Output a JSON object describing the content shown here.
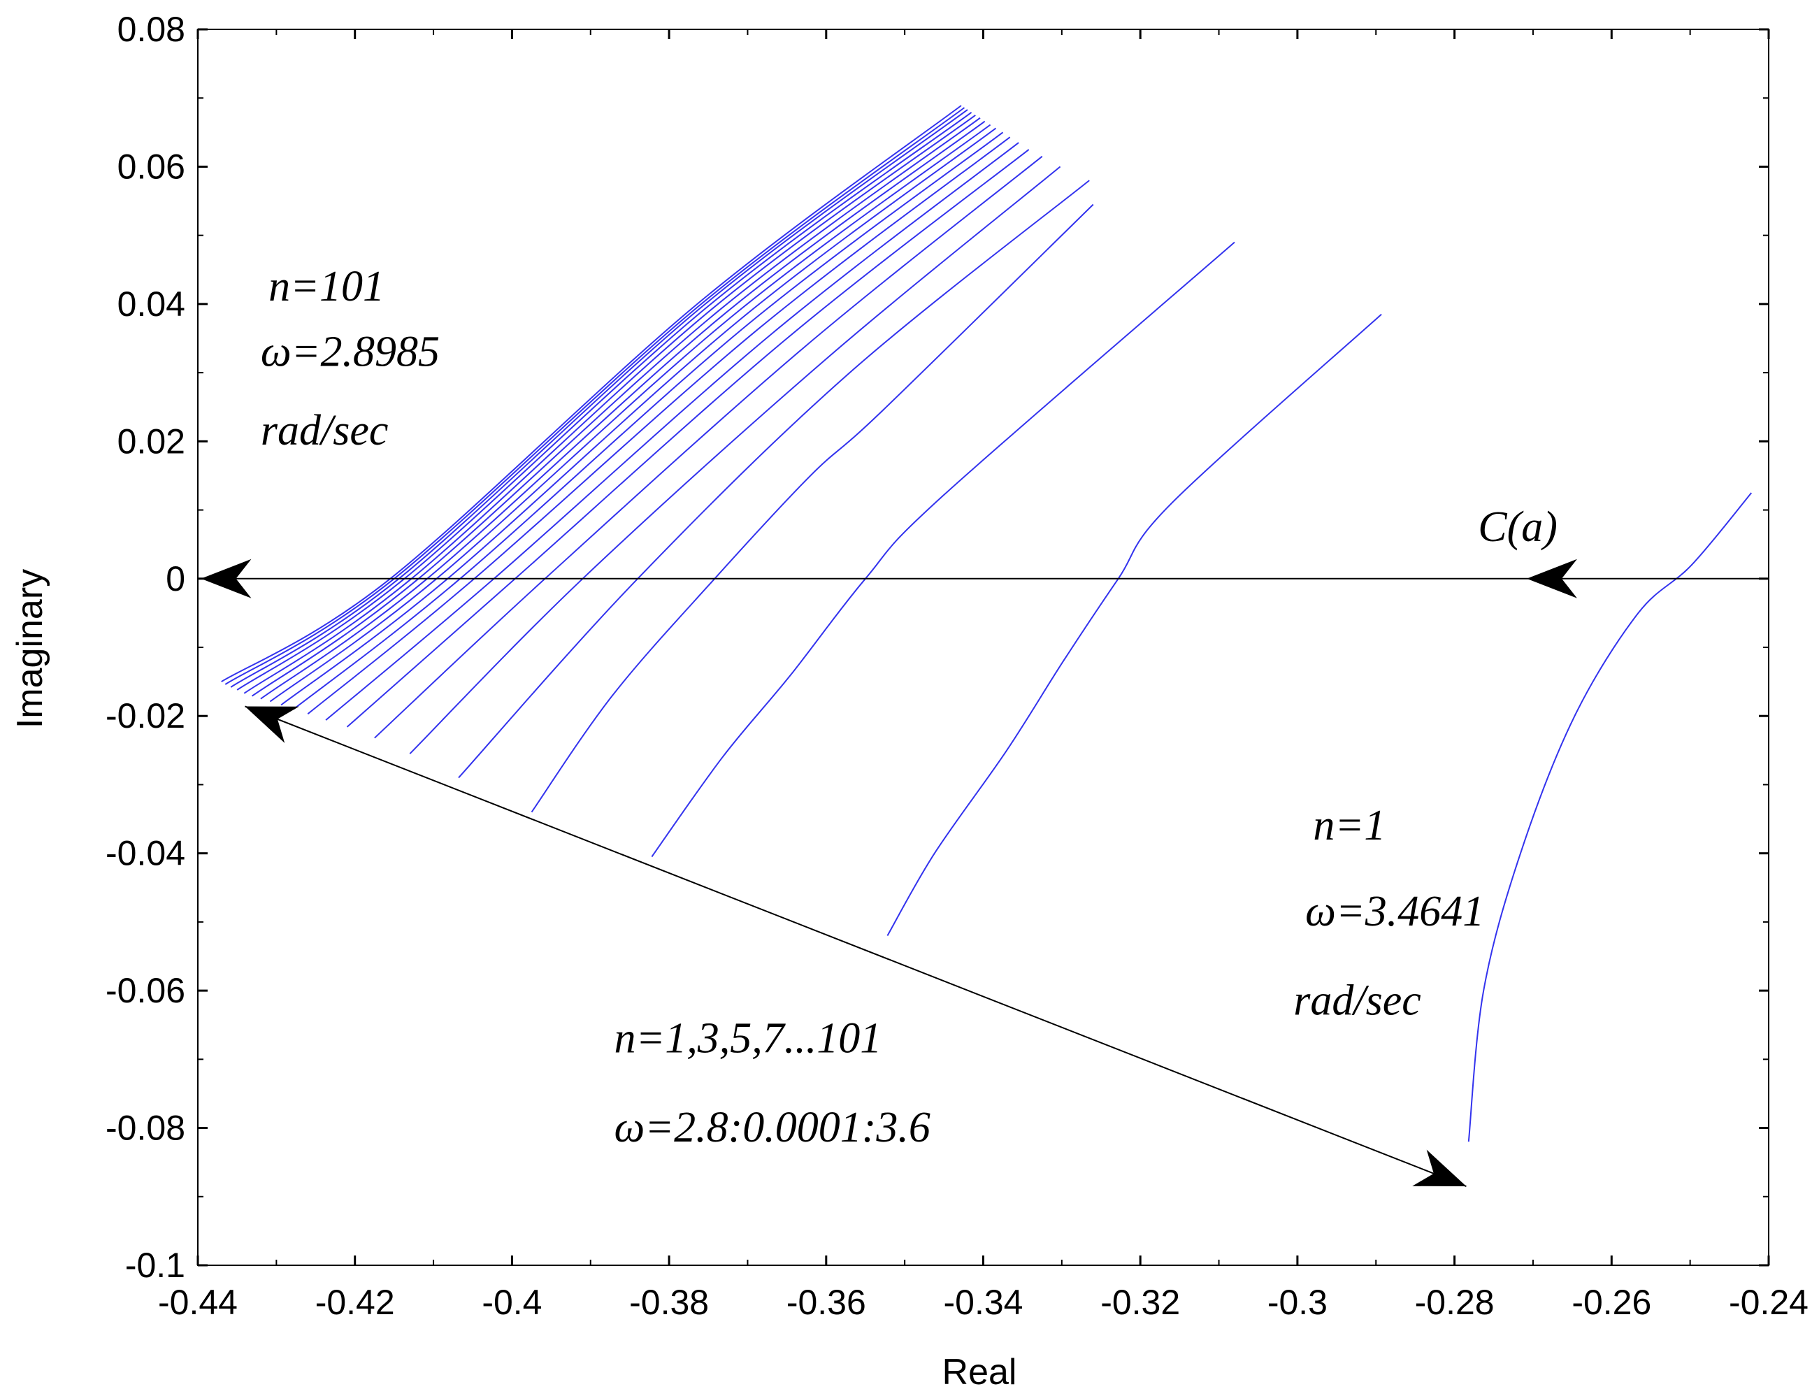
{
  "chart_data": {
    "type": "line",
    "title": "",
    "xlabel": "Real",
    "ylabel": "Imaginary",
    "xlim": [
      -0.44,
      -0.24
    ],
    "ylim": [
      -0.1,
      0.08
    ],
    "x_ticks": [
      -0.44,
      -0.42,
      -0.4,
      -0.38,
      -0.36,
      -0.34,
      -0.32,
      -0.3,
      -0.28,
      -0.26,
      -0.24
    ],
    "x_tick_labels": [
      "-0.44",
      "-0.42",
      "-0.4",
      "-0.38",
      "-0.36",
      "-0.34",
      "-0.32",
      "-0.3",
      "-0.28",
      "-0.26",
      "-0.24"
    ],
    "y_ticks": [
      0.08,
      0.06,
      0.04,
      0.02,
      0,
      -0.02,
      -0.04,
      -0.06,
      -0.08,
      -0.1
    ],
    "y_tick_labels": [
      "0.08",
      "0.06",
      "0.04",
      "0.02",
      "0",
      "-0.02",
      "-0.04",
      "-0.06",
      "-0.08",
      "-0.1"
    ],
    "grid": false,
    "series_color": "#3333ee",
    "series": [
      {
        "name": "n=1",
        "points": [
          [
            -0.2782,
            -0.082
          ],
          [
            -0.2763,
            -0.06
          ],
          [
            -0.2716,
            -0.04
          ],
          [
            -0.2647,
            -0.02
          ],
          [
            -0.2566,
            -0.005
          ],
          [
            -0.2498,
            0.002
          ],
          [
            -0.2422,
            0.0125
          ]
        ]
      },
      {
        "name": "n=3",
        "points": [
          [
            -0.3522,
            -0.052
          ],
          [
            -0.3462,
            -0.04
          ],
          [
            -0.337,
            -0.025
          ],
          [
            -0.3298,
            -0.012
          ],
          [
            -0.3228,
            0.0
          ],
          [
            -0.316,
            0.011
          ],
          [
            -0.2893,
            0.0385
          ]
        ]
      },
      {
        "name": "n=5",
        "points": [
          [
            -0.3822,
            -0.0405
          ],
          [
            -0.3732,
            -0.026
          ],
          [
            -0.3645,
            -0.014
          ],
          [
            -0.355,
            0.0
          ],
          [
            -0.3452,
            0.012
          ],
          [
            -0.308,
            0.049
          ]
        ]
      },
      {
        "name": "n=7",
        "points": [
          [
            -0.3975,
            -0.034
          ],
          [
            -0.3872,
            -0.017
          ],
          [
            -0.3742,
            0.0
          ],
          [
            -0.362,
            0.015
          ],
          [
            -0.3528,
            0.0245
          ],
          [
            -0.326,
            0.0545
          ]
        ]
      },
      {
        "name": "n=9",
        "points": [
          [
            -0.4068,
            -0.029
          ],
          [
            -0.384,
            0.0
          ],
          [
            -0.357,
            0.03
          ],
          [
            -0.3265,
            0.058
          ]
        ]
      },
      {
        "name": "n=11",
        "points": [
          [
            -0.413,
            -0.0255
          ],
          [
            -0.391,
            0.0
          ],
          [
            -0.36,
            0.032
          ],
          [
            -0.3302,
            0.06
          ]
        ]
      },
      {
        "name": "n=13",
        "points": [
          [
            -0.4175,
            -0.0232
          ],
          [
            -0.3958,
            0.0
          ],
          [
            -0.363,
            0.0335
          ],
          [
            -0.3325,
            0.0615
          ]
        ]
      },
      {
        "name": "n=15",
        "points": [
          [
            -0.421,
            -0.0216
          ],
          [
            -0.3996,
            0.0
          ],
          [
            -0.3652,
            0.0348
          ],
          [
            -0.3342,
            0.0625
          ]
        ]
      },
      {
        "name": "n=17",
        "points": [
          [
            -0.4237,
            -0.0206
          ],
          [
            -0.4023,
            0.0
          ],
          [
            -0.367,
            0.0356
          ],
          [
            -0.3355,
            0.0635
          ]
        ]
      },
      {
        "name": "n=19",
        "points": [
          [
            -0.426,
            -0.0197
          ],
          [
            -0.4048,
            0.0
          ],
          [
            -0.3686,
            0.0364
          ],
          [
            -0.3366,
            0.0643
          ]
        ]
      },
      {
        "name": "n=21",
        "points": [
          [
            -0.4278,
            -0.019
          ],
          [
            -0.4066,
            0.0
          ],
          [
            -0.3699,
            0.0371
          ],
          [
            -0.3375,
            0.065
          ]
        ]
      },
      {
        "name": "n=23",
        "points": [
          [
            -0.4294,
            -0.0184
          ],
          [
            -0.4082,
            0.0
          ],
          [
            -0.371,
            0.0377
          ],
          [
            -0.3384,
            0.0656
          ]
        ]
      },
      {
        "name": "n=25",
        "points": [
          [
            -0.4308,
            -0.0179
          ],
          [
            -0.4096,
            0.0
          ],
          [
            -0.372,
            0.0382
          ],
          [
            -0.3391,
            0.0661
          ]
        ]
      },
      {
        "name": "n=27",
        "points": [
          [
            -0.432,
            -0.0175
          ],
          [
            -0.4108,
            0.0
          ],
          [
            -0.3728,
            0.0387
          ],
          [
            -0.3398,
            0.0666
          ]
        ]
      },
      {
        "name": "n=29",
        "points": [
          [
            -0.4331,
            -0.0171
          ],
          [
            -0.4119,
            0.0
          ],
          [
            -0.3736,
            0.0391
          ],
          [
            -0.3404,
            0.0671
          ]
        ]
      },
      {
        "name": "n=31",
        "points": [
          [
            -0.4341,
            -0.0167
          ],
          [
            -0.4128,
            0.0
          ],
          [
            -0.3743,
            0.0395
          ],
          [
            -0.341,
            0.0675
          ]
        ]
      },
      {
        "name": "n=35",
        "points": [
          [
            -0.435,
            -0.0162
          ],
          [
            -0.4137,
            0.0
          ],
          [
            -0.3749,
            0.0398
          ],
          [
            -0.3415,
            0.0679
          ]
        ]
      },
      {
        "name": "n=43",
        "points": [
          [
            -0.4358,
            -0.0158
          ],
          [
            -0.4144,
            0.0
          ],
          [
            -0.3754,
            0.04
          ],
          [
            -0.342,
            0.0683
          ]
        ]
      },
      {
        "name": "n=61",
        "points": [
          [
            -0.4365,
            -0.0154
          ],
          [
            -0.415,
            0.0
          ],
          [
            -0.3758,
            0.0401
          ],
          [
            -0.3424,
            0.0686
          ]
        ]
      },
      {
        "name": "n=101",
        "points": [
          [
            -0.437,
            -0.015
          ],
          [
            -0.4155,
            0.0
          ],
          [
            -0.3762,
            0.0402
          ],
          [
            -0.3428,
            0.0689
          ]
        ]
      }
    ],
    "reference_line": {
      "name": "C(a)",
      "y": 0,
      "from_x": -0.24,
      "to_x": -0.44
    },
    "annotations": [
      {
        "id": "n101_n",
        "text": "n=101",
        "x": -0.431,
        "y": 0.0405
      },
      {
        "id": "n101_w",
        "text": "ω=2.8985",
        "x": -0.432,
        "y": 0.031
      },
      {
        "id": "n101_unit",
        "text": "rad/sec",
        "x": -0.432,
        "y": 0.0195
      },
      {
        "id": "ca",
        "text": "C(a)",
        "x": -0.277,
        "y": 0.0055
      },
      {
        "id": "n1_n",
        "text": "n=1",
        "x": -0.298,
        "y": -0.038
      },
      {
        "id": "n1_w",
        "text": "ω=3.4641",
        "x": -0.299,
        "y": -0.0505
      },
      {
        "id": "n1_unit",
        "text": "rad/sec",
        "x": -0.3005,
        "y": -0.0635
      },
      {
        "id": "range_n",
        "text": "n=1,3,5,7...101",
        "x": -0.387,
        "y": -0.069
      },
      {
        "id": "range_w",
        "text": "ω=2.8:0.0001:3.6",
        "x": -0.387,
        "y": -0.082
      }
    ],
    "arrows": [
      {
        "id": "arrow-c-a",
        "from": [
          -0.276,
          0.0
        ],
        "to": [
          -0.27,
          0.0
        ],
        "direction": "left"
      },
      {
        "id": "arrow-axis-end",
        "from": [
          -0.434,
          0.0
        ],
        "to": [
          -0.44,
          0.0
        ],
        "direction": "left"
      },
      {
        "id": "arrow-range-start",
        "from": [
          -0.4365,
          -0.0202
        ],
        "to": [
          -0.434,
          -0.0186
        ]
      },
      {
        "id": "arrow-range-end",
        "from": [
          -0.434,
          -0.0186
        ],
        "to": [
          -0.2785,
          -0.0885
        ]
      }
    ]
  }
}
